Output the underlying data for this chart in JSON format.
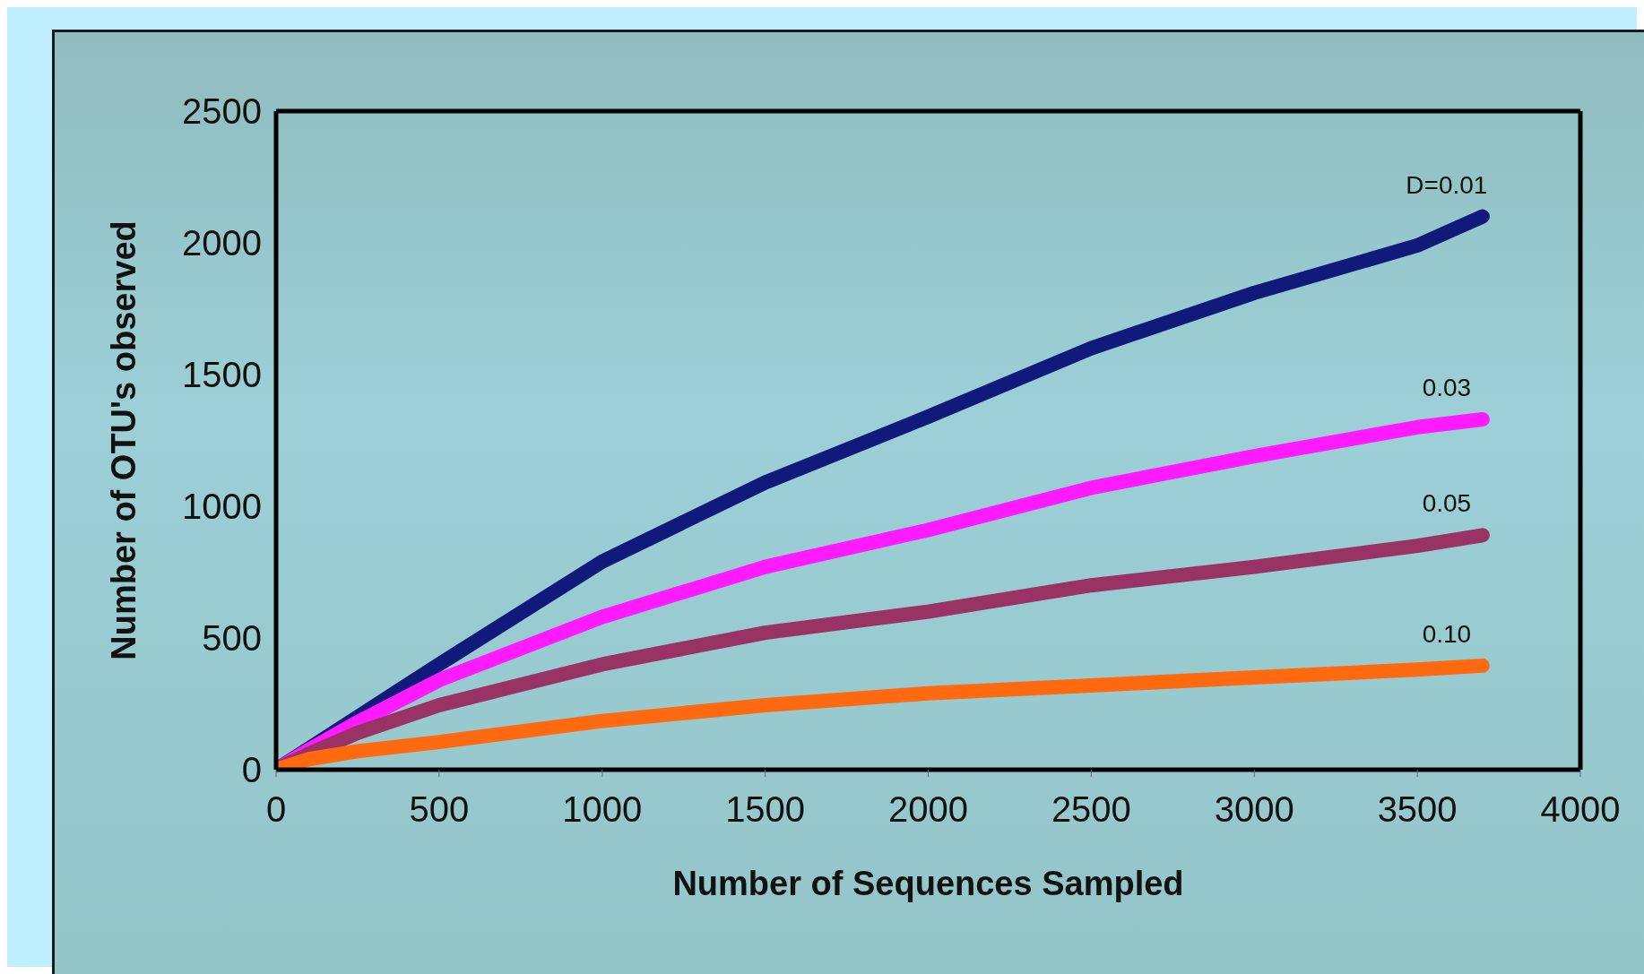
{
  "chart_data": {
    "type": "line",
    "xlabel": "Number of Sequences Sampled",
    "ylabel": "Number of OTU's observed",
    "xlim": [
      0,
      4000
    ],
    "xticks": [
      0,
      500,
      1000,
      1500,
      2000,
      2500,
      3000,
      3500,
      4000
    ],
    "ylim": [
      0,
      2500
    ],
    "yticks": [
      0,
      500,
      1000,
      1500,
      2000,
      2500
    ],
    "grid": false,
    "legend": false,
    "marker": "none",
    "line_style": "solid",
    "x": [
      0,
      100,
      250,
      500,
      1000,
      1500,
      2000,
      2500,
      3000,
      3500,
      3700
    ],
    "series": [
      {
        "name": "D=0.01",
        "color": "#101a7a",
        "values": [
          0,
          80,
          200,
          400,
          790,
          1090,
          1340,
          1600,
          1810,
          1990,
          2100
        ]
      },
      {
        "name": "0.03",
        "color": "#ff1aff",
        "values": [
          0,
          75,
          180,
          340,
          580,
          770,
          910,
          1070,
          1190,
          1300,
          1330
        ]
      },
      {
        "name": "0.05",
        "color": "#993366",
        "values": [
          0,
          60,
          140,
          245,
          400,
          520,
          600,
          700,
          770,
          850,
          890
        ]
      },
      {
        "name": "0.10",
        "color": "#ff6a10",
        "values": [
          0,
          40,
          70,
          105,
          185,
          245,
          290,
          320,
          350,
          380,
          395
        ]
      }
    ]
  }
}
